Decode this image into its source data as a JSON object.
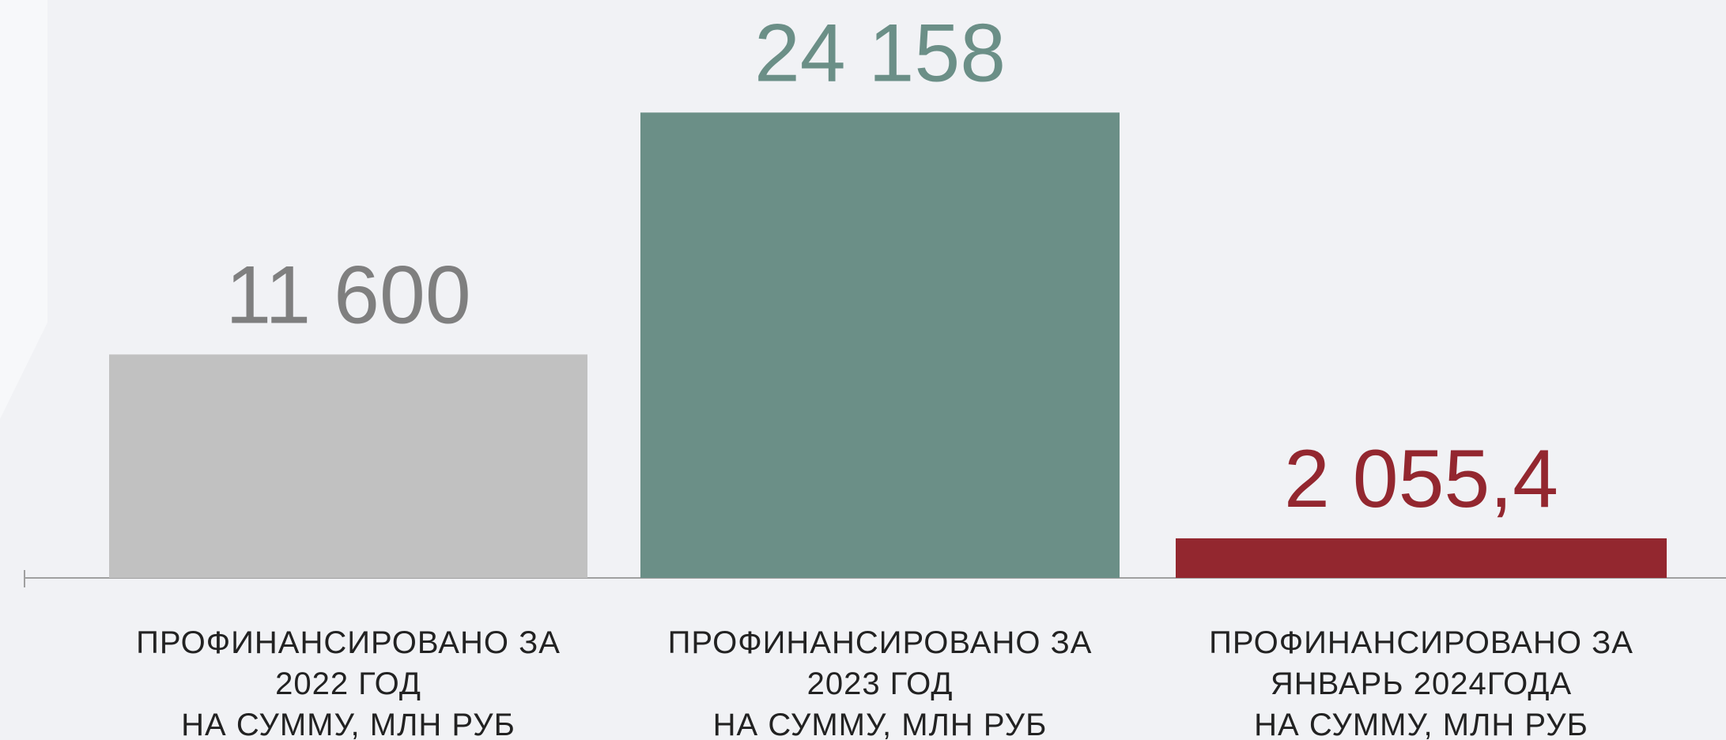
{
  "chart_data": {
    "type": "bar",
    "categories": [
      [
        "ПРОФИНАНСИРОВАНО ЗА",
        "2022 ГОД",
        "НА СУММУ,  МЛН РУБ"
      ],
      [
        "ПРОФИНАНСИРОВАНО ЗА",
        "2023 ГОД",
        "НА СУММУ,  МЛН РУБ"
      ],
      [
        "ПРОФИНАНСИРОВАНО ЗА",
        "ЯНВАРЬ 2024ГОДА",
        "НА СУММУ,  МЛН РУБ"
      ]
    ],
    "values": [
      11600,
      24158,
      2055.4
    ],
    "value_labels": [
      "11 600",
      "24 158",
      "2 055,4"
    ],
    "colors": [
      "#c1c1c1",
      "#6b8f87",
      "#93272f"
    ],
    "label_colors": [
      "#7f7f7f",
      "#6b8f87",
      "#93272f"
    ],
    "ylim": [
      0,
      30000
    ]
  }
}
